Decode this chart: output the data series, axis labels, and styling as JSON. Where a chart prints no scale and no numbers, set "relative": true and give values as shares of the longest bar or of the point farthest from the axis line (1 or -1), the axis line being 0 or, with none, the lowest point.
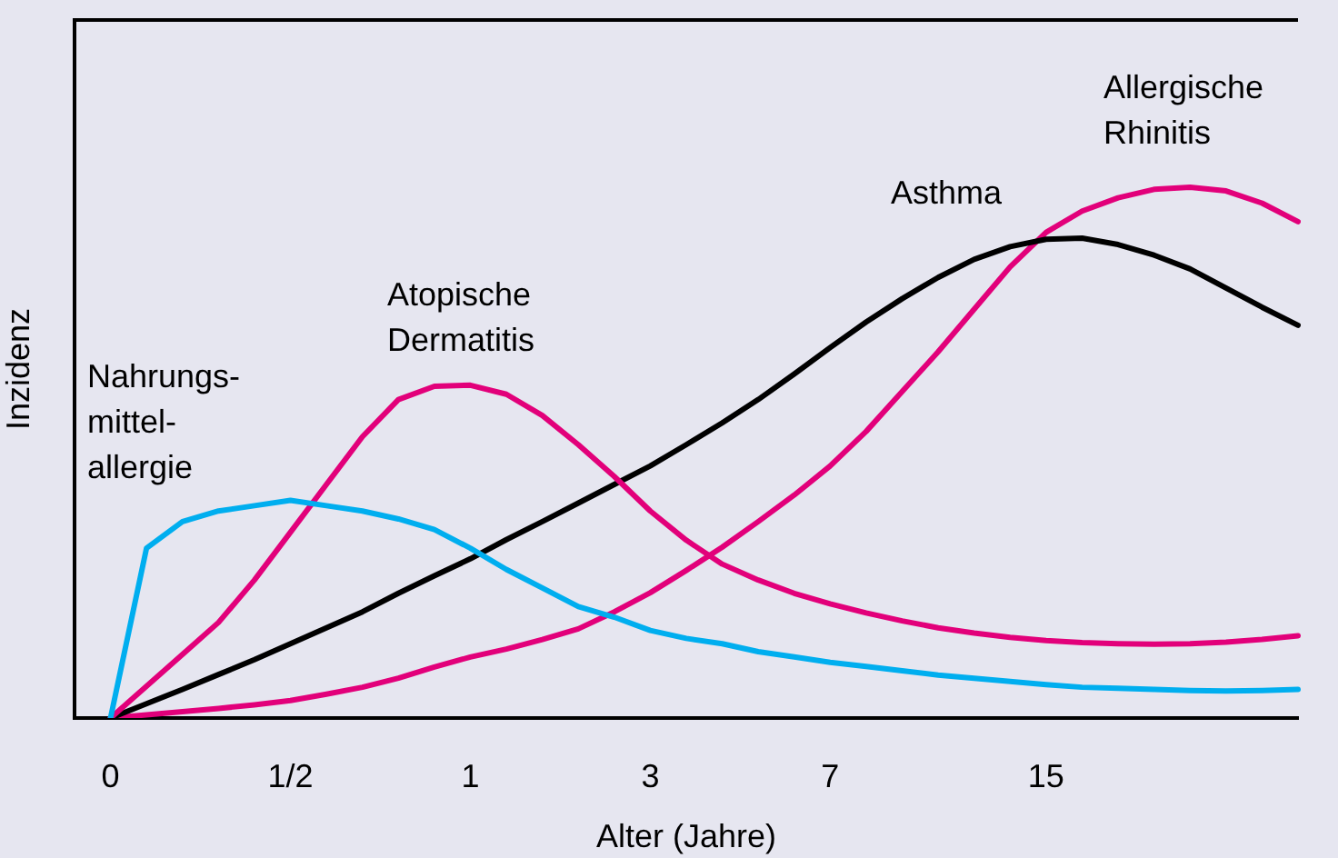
{
  "chart_data": {
    "type": "line",
    "relative": true,
    "xlabel": "Alter (Jahre)",
    "ylabel": "Inzidenz",
    "marker": "none",
    "categories": [
      null,
      "0",
      null,
      null,
      null,
      null,
      "1/2",
      null,
      null,
      null,
      null,
      "1",
      null,
      null,
      null,
      null,
      "3",
      null,
      null,
      null,
      null,
      "7",
      null,
      null,
      null,
      null,
      null,
      "15",
      null,
      null,
      null,
      null,
      null,
      null,
      null
    ],
    "series": [
      {
        "name": "Nahrungs-\nmittel-\nallergie",
        "color": "#00aeef",
        "values": [
          null,
          0,
          0.32,
          0.37,
          0.39,
          0.4,
          0.41,
          0.4,
          0.39,
          0.375,
          0.355,
          0.32,
          0.28,
          0.245,
          0.21,
          0.19,
          0.165,
          0.15,
          0.14,
          0.125,
          0.115,
          0.105,
          0.097,
          0.089,
          0.081,
          0.075,
          0.069,
          0.063,
          0.058,
          0.056,
          0.054,
          0.052,
          0.051,
          0.052,
          0.054
        ]
      },
      {
        "name": "Atopische\nDermatitis",
        "color": "#e2007a",
        "values": [
          null,
          0,
          0.06,
          0.12,
          0.18,
          0.26,
          0.35,
          0.44,
          0.53,
          0.6,
          0.625,
          0.627,
          0.61,
          0.57,
          0.515,
          0.455,
          0.39,
          0.335,
          0.29,
          0.26,
          0.235,
          0.215,
          0.198,
          0.183,
          0.17,
          0.16,
          0.152,
          0.146,
          0.142,
          0.14,
          0.139,
          0.14,
          0.143,
          0.148,
          0.155
        ]
      },
      {
        "name": "Asthma",
        "color": "#000000",
        "values": [
          null,
          0,
          0.027,
          0.054,
          0.082,
          0.11,
          0.14,
          0.17,
          0.2,
          0.235,
          0.268,
          0.3,
          0.336,
          0.37,
          0.405,
          0.44,
          0.475,
          0.515,
          0.556,
          0.6,
          0.648,
          0.698,
          0.746,
          0.79,
          0.83,
          0.864,
          0.888,
          0.902,
          0.904,
          0.892,
          0.872,
          0.846,
          0.81,
          0.774,
          0.74
        ]
      },
      {
        "name": "Allergische\nRhinitis",
        "color": "#e2007a",
        "values": [
          null,
          0,
          0.006,
          0.012,
          0.018,
          0.025,
          0.033,
          0.045,
          0.058,
          0.075,
          0.096,
          0.115,
          0.13,
          0.148,
          0.168,
          0.2,
          0.236,
          0.278,
          0.322,
          0.37,
          0.42,
          0.475,
          0.54,
          0.615,
          0.69,
          0.77,
          0.85,
          0.915,
          0.955,
          0.98,
          0.996,
          1,
          0.993,
          0.97,
          0.935
        ]
      }
    ]
  }
}
